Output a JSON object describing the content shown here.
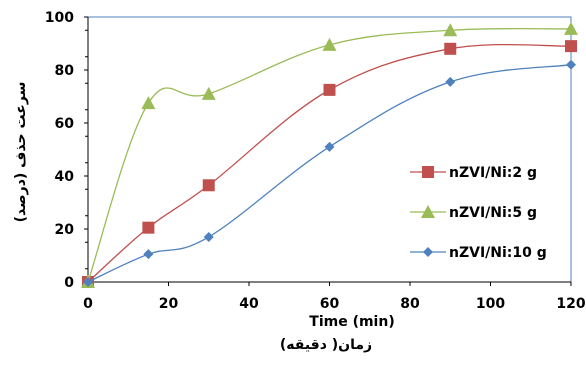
{
  "chart_data": {
    "type": "line",
    "title": "",
    "xlabel": "زمان( دقیقه)",
    "ylabel": "سرعت حذف (درصد)",
    "overlapped_axis_text": "Time (min)",
    "xlim": [
      0,
      120
    ],
    "ylim": [
      0,
      100
    ],
    "xticks": [
      "0",
      "20",
      "40",
      "60",
      "80",
      "100",
      "120"
    ],
    "yticks": [
      "0",
      "20",
      "40",
      "60",
      "80",
      "100"
    ],
    "x": [
      0,
      15,
      30,
      60,
      90,
      120
    ],
    "series": [
      {
        "name": "nZVI/Ni:2 g",
        "color": "#c0504d",
        "marker": "square",
        "values": [
          0,
          20.5,
          36.5,
          72.5,
          88,
          89
        ]
      },
      {
        "name": "nZVI/Ni:5 g",
        "color": "#9bbb59",
        "marker": "triangle",
        "values": [
          0,
          67.5,
          71,
          89.5,
          95,
          95.5
        ]
      },
      {
        "name": "nZVI/Ni:10 g",
        "color": "#4f81bd",
        "marker": "diamond",
        "values": [
          0,
          10.5,
          17,
          51,
          75.5,
          82
        ]
      }
    ],
    "legend_position": "right",
    "grid": false,
    "axis_color": "#4f81bd"
  }
}
